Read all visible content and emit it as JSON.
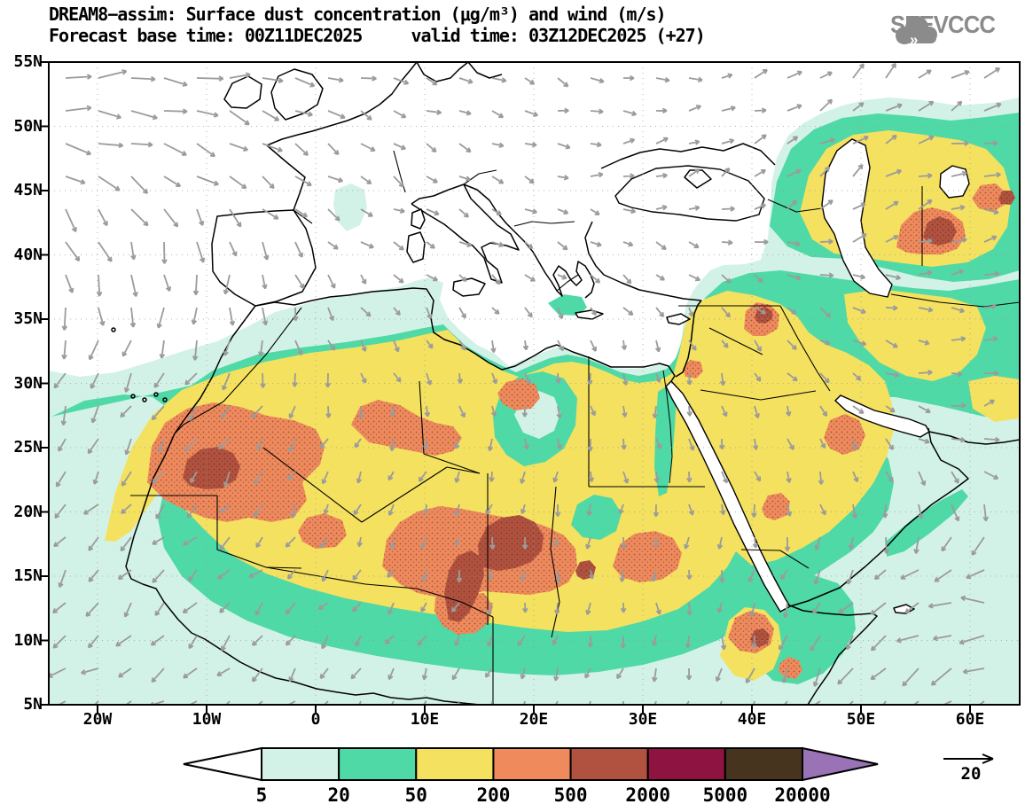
{
  "header": {
    "title_line1": "DREAM8−assim: Surface dust concentration (μg/m³) and wind (m/s)",
    "title_line2": "Forecast base time: 00Z11DEC2025     valid time: 03Z12DEC2025 (+27)",
    "logo_text": "SEEVCCC"
  },
  "axes": {
    "lat_labels": [
      "55N",
      "50N",
      "45N",
      "40N",
      "35N",
      "30N",
      "25N",
      "20N",
      "15N",
      "10N",
      "5N"
    ],
    "lon_labels": [
      "20W",
      "10W",
      "0",
      "10E",
      "20E",
      "30E",
      "40E",
      "50E",
      "60E"
    ]
  },
  "colorbar": {
    "tick_labels": [
      "5",
      "20",
      "50",
      "200",
      "500",
      "2000",
      "5000",
      "20000"
    ],
    "segment_colors": [
      "#d3f2e7",
      "#4fd9a6",
      "#f4e160",
      "#ef8a5d",
      "#b0523f",
      "#8e1341",
      "#46341f"
    ],
    "under_arrow_color": "#ffffff",
    "over_arrow_color": "#9973b5"
  },
  "wind": {
    "reference_label": "20",
    "arrow_color": "#9b9b9b"
  },
  "chart_data": {
    "type": "heatmap",
    "model": "DREAM8-assim",
    "variable": "Surface dust concentration",
    "units": "μg/m³",
    "overlay": "wind vectors",
    "wind_units": "m/s",
    "forecast_base_time": "00Z11DEC2025",
    "valid_time": "03Z12DEC2025",
    "forecast_hour": "+27",
    "lat_range": [
      "5N",
      "55N"
    ],
    "lon_range": [
      "25W",
      "65E"
    ],
    "contour_levels": [
      5,
      20,
      50,
      200,
      500,
      2000,
      5000,
      20000
    ],
    "wind_reference_vector": 20,
    "dust_maxima": [
      {
        "region": "Mauritania / Western Sahara core (~10W, 23N)",
        "level": "500–2000"
      },
      {
        "region": "Chad – Sudan border cores (~16E, 17N)",
        "level": "500–2000"
      },
      {
        "region": "Levant / N Iraq (~41E, 35N)",
        "level": "500–2000"
      },
      {
        "region": "East of Caspian, Turkmenistan (~57E, 42N)",
        "level": "500–2000"
      },
      {
        "region": "SW Red Sea coast (~42E, 13N)",
        "level": "500–2000"
      },
      {
        "region": "Sahara belt 8N–30N, Arabia and Central Asia",
        "level": "50–200 widespread with 200–500 patches"
      }
    ]
  }
}
